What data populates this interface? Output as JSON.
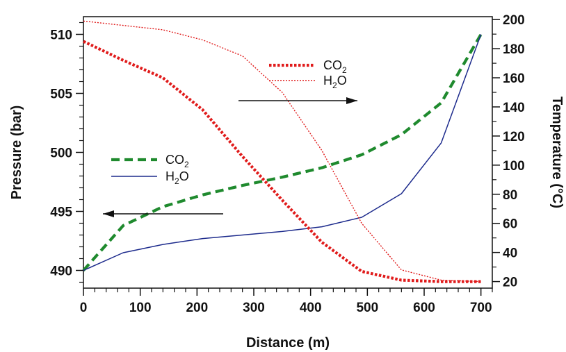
{
  "chart_data": {
    "type": "line",
    "xlabel": "Distance (m)",
    "ylabel_left": "Pressure (bar)",
    "ylabel_right": "Temperature (°C)",
    "xlim": [
      0,
      720
    ],
    "ylim_left": [
      488.5,
      511.5
    ],
    "ylim_right": [
      15.5,
      202
    ],
    "xticks": [
      0,
      100,
      200,
      300,
      400,
      500,
      600,
      700
    ],
    "yticks_left": [
      490,
      495,
      500,
      505,
      510
    ],
    "yticks_right": [
      20,
      40,
      60,
      80,
      100,
      120,
      140,
      160,
      180,
      200
    ],
    "grid": false,
    "series": [
      {
        "name": "CO2",
        "axis": "left",
        "color": "#1f8a2e",
        "style": "dashed-thick",
        "x": [
          0,
          70,
          140,
          210,
          280,
          350,
          420,
          490,
          560,
          630,
          700
        ],
        "y": [
          490.0,
          493.8,
          495.4,
          496.4,
          497.2,
          497.9,
          498.7,
          499.8,
          501.5,
          504.2,
          510.0
        ]
      },
      {
        "name": "H2O",
        "axis": "left",
        "color": "#1c2a8c",
        "style": "solid-thin",
        "x": [
          0,
          70,
          140,
          210,
          280,
          350,
          420,
          490,
          560,
          630,
          700
        ],
        "y": [
          490.0,
          491.5,
          492.2,
          492.7,
          493.0,
          493.3,
          493.7,
          494.5,
          496.5,
          500.8,
          510.0
        ]
      },
      {
        "name": "CO2",
        "axis": "right",
        "color": "#e01b1b",
        "style": "dotted-thick",
        "x": [
          0,
          70,
          140,
          210,
          280,
          350,
          420,
          490,
          560,
          630,
          700
        ],
        "y": [
          185,
          172,
          160,
          138,
          106,
          76,
          47,
          27,
          21,
          20,
          20
        ]
      },
      {
        "name": "H2O",
        "axis": "right",
        "color": "#e01b1b",
        "style": "dotted-thin",
        "x": [
          0,
          70,
          140,
          210,
          280,
          350,
          420,
          490,
          560,
          630,
          700
        ],
        "y": [
          199,
          196,
          193,
          186,
          175,
          150,
          110,
          60,
          28,
          21,
          20
        ]
      }
    ],
    "legends": {
      "pressure": [
        {
          "label": "CO",
          "sub": "2",
          "color": "#1f8a2e",
          "style": "dashed-thick"
        },
        {
          "label": "H",
          "sub": "2",
          "tail": "O",
          "color": "#1c2a8c",
          "style": "solid-thin"
        }
      ],
      "temperature": [
        {
          "label": "CO",
          "sub": "2",
          "color": "#e01b1b",
          "style": "dotted-thick"
        },
        {
          "label": "H",
          "sub": "2",
          "tail": "O",
          "color": "#e01b1b",
          "style": "dotted-thin"
        }
      ]
    },
    "arrows": [
      {
        "direction": "right",
        "meaning": "temperature axis"
      },
      {
        "direction": "left",
        "meaning": "pressure axis"
      }
    ]
  }
}
